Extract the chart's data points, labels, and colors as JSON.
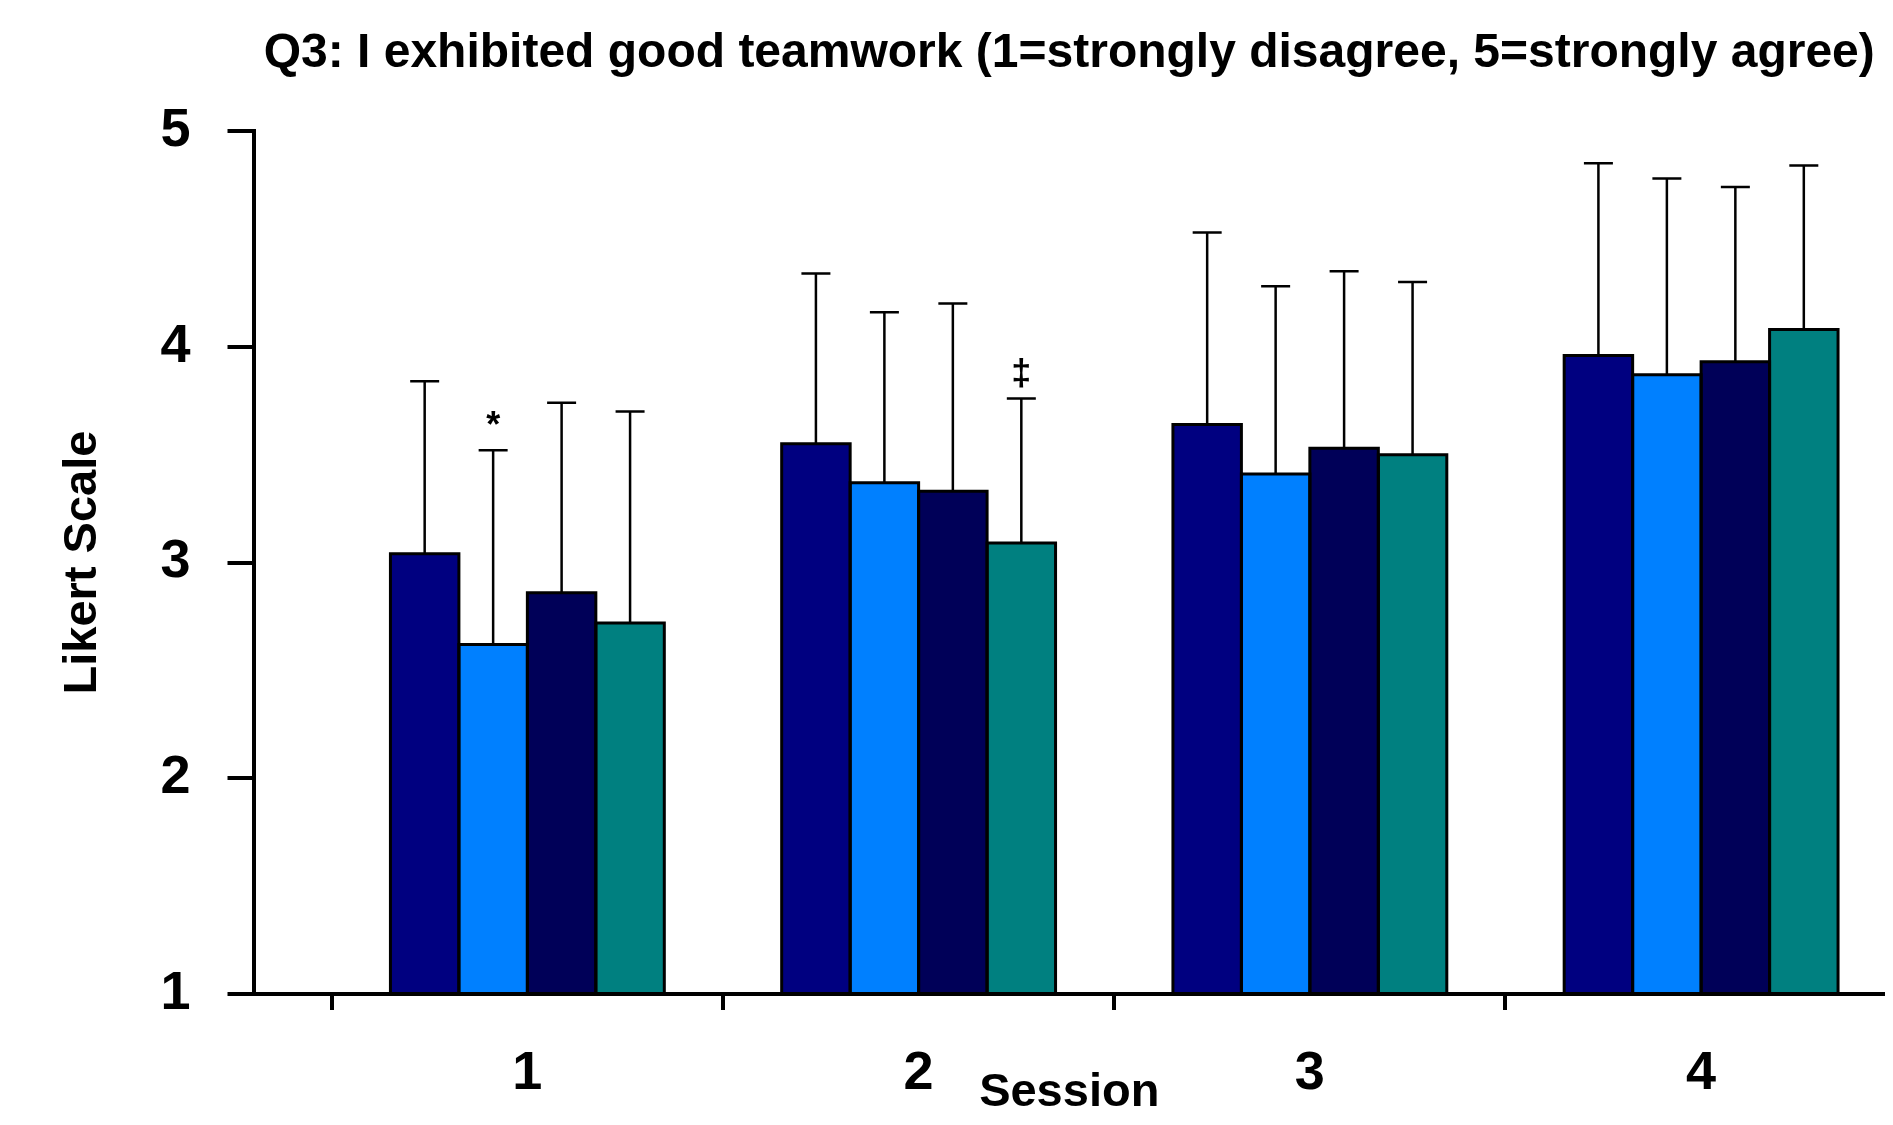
{
  "chart_data": {
    "type": "bar",
    "title": "Q3: I exhibited good teamwork (1=strongly disagree, 5=strongly agree)",
    "xlabel": "Session",
    "ylabel": "Likert Scale",
    "categories": [
      "1",
      "2",
      "3",
      "4"
    ],
    "series": [
      {
        "color": "#000080",
        "values": [
          3.04,
          3.55,
          3.64,
          3.96
        ],
        "errors": [
          [
            3.04,
            3.84
          ],
          [
            3.55,
            4.34
          ],
          [
            3.64,
            4.53
          ],
          [
            3.96,
            4.85
          ]
        ]
      },
      {
        "color": "#0080ff",
        "values": [
          2.62,
          3.37,
          3.41,
          3.87
        ],
        "errors": [
          [
            2.62,
            3.52
          ],
          [
            3.37,
            4.16
          ],
          [
            3.41,
            4.28
          ],
          [
            3.87,
            4.78
          ]
        ]
      },
      {
        "color": "#000058",
        "values": [
          2.86,
          3.33,
          3.53,
          3.93
        ],
        "errors": [
          [
            2.86,
            3.74
          ],
          [
            3.33,
            4.2
          ],
          [
            3.53,
            4.35
          ],
          [
            3.93,
            4.74
          ]
        ]
      },
      {
        "color": "#008080",
        "values": [
          2.72,
          3.09,
          3.5,
          4.08
        ],
        "errors": [
          [
            2.72,
            3.7
          ],
          [
            3.09,
            3.76
          ],
          [
            3.5,
            4.3
          ],
          [
            4.08,
            4.84
          ]
        ]
      }
    ],
    "ylim": [
      1,
      5
    ],
    "yticks": [
      1,
      2,
      3,
      4,
      5
    ],
    "grid": false,
    "legend": false,
    "annotations": [
      "*",
      "‡"
    ]
  }
}
